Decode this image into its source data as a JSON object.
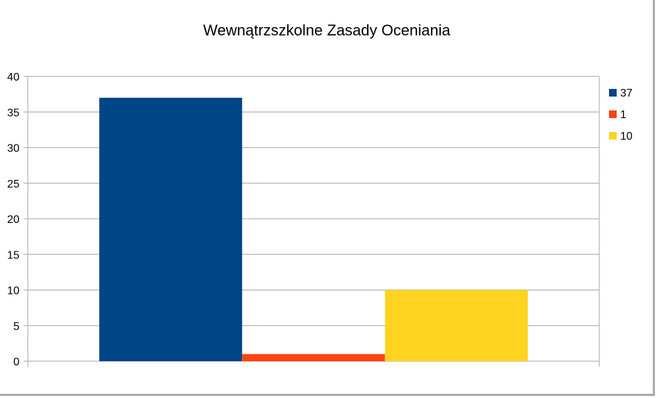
{
  "chart_data": {
    "type": "bar",
    "title": "Wewnątrzszkolne Zasady Oceniania",
    "xlabel": "",
    "ylabel": "",
    "categories": [
      ""
    ],
    "ylim": [
      0,
      40
    ],
    "yticks": [
      "0",
      "5",
      "10",
      "15",
      "20",
      "25",
      "30",
      "35",
      "40"
    ],
    "grid": true,
    "legend_position": "right",
    "series": [
      {
        "name": "37",
        "values": [
          37
        ],
        "color": "#004586"
      },
      {
        "name": "1",
        "values": [
          1
        ],
        "color": "#ff420e"
      },
      {
        "name": "10",
        "values": [
          10
        ],
        "color": "#ffd320"
      }
    ]
  }
}
